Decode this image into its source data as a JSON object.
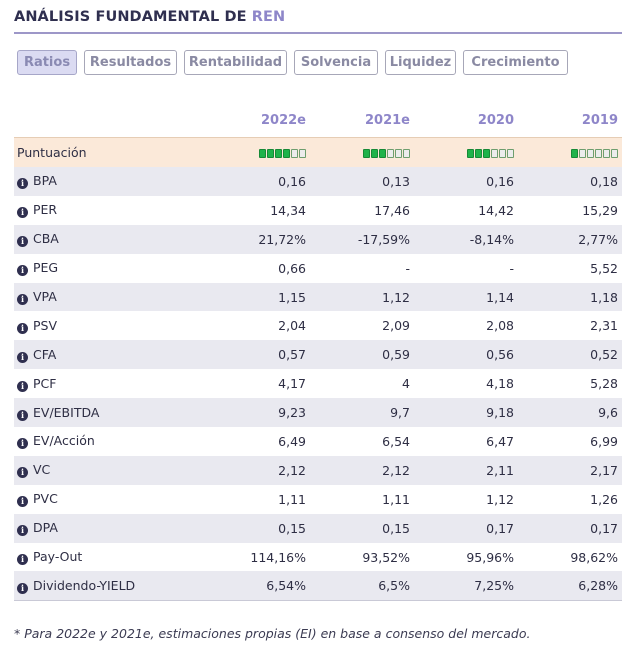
{
  "header": {
    "title_prefix": "ANÁLISIS FUNDAMENTAL DE ",
    "ticker": "REN"
  },
  "tabs": [
    {
      "label": "Ratios",
      "active": true
    },
    {
      "label": "Resultados",
      "active": false
    },
    {
      "label": "Rentabilidad",
      "active": false
    },
    {
      "label": "Solvencia",
      "active": false
    },
    {
      "label": "Liquidez",
      "active": false
    },
    {
      "label": "Crecimiento",
      "active": false
    }
  ],
  "columns": [
    "2022e",
    "2021e",
    "2020",
    "2019"
  ],
  "score": {
    "label": "Puntuación",
    "filled": [
      4,
      3,
      3,
      1
    ],
    "total": 6
  },
  "rows": [
    {
      "label": "BPA",
      "values": [
        "0,16",
        "0,13",
        "0,16",
        "0,18"
      ]
    },
    {
      "label": "PER",
      "values": [
        "14,34",
        "17,46",
        "14,42",
        "15,29"
      ]
    },
    {
      "label": "CBA",
      "values": [
        "21,72%",
        "-17,59%",
        "-8,14%",
        "2,77%"
      ]
    },
    {
      "label": "PEG",
      "values": [
        "0,66",
        "-",
        "-",
        "5,52"
      ]
    },
    {
      "label": "VPA",
      "values": [
        "1,15",
        "1,12",
        "1,14",
        "1,18"
      ]
    },
    {
      "label": "PSV",
      "values": [
        "2,04",
        "2,09",
        "2,08",
        "2,31"
      ]
    },
    {
      "label": "CFA",
      "values": [
        "0,57",
        "0,59",
        "0,56",
        "0,52"
      ]
    },
    {
      "label": "PCF",
      "values": [
        "4,17",
        "4",
        "4,18",
        "5,28"
      ]
    },
    {
      "label": "EV/EBITDA",
      "values": [
        "9,23",
        "9,7",
        "9,18",
        "9,6"
      ]
    },
    {
      "label": "EV/Acción",
      "values": [
        "6,49",
        "6,54",
        "6,47",
        "6,99"
      ]
    },
    {
      "label": "VC",
      "values": [
        "2,12",
        "2,12",
        "2,11",
        "2,17"
      ]
    },
    {
      "label": "PVC",
      "values": [
        "1,11",
        "1,11",
        "1,12",
        "1,26"
      ]
    },
    {
      "label": "DPA",
      "values": [
        "0,15",
        "0,15",
        "0,17",
        "0,17"
      ]
    },
    {
      "label": "Pay-Out",
      "values": [
        "114,16%",
        "93,52%",
        "95,96%",
        "98,62%"
      ]
    },
    {
      "label": "Dividendo-YIELD",
      "values": [
        "6,54%",
        "6,5%",
        "7,25%",
        "6,28%"
      ]
    }
  ],
  "footnote": "* Para 2022e y 2021e, estimaciones propias (EI) en base a consenso del mercado.",
  "colors": {
    "accent": "#8e86c9",
    "score_fill": "#1fb34a",
    "row_alt": "#e9e9f0",
    "score_row": "#fbe9d9"
  }
}
